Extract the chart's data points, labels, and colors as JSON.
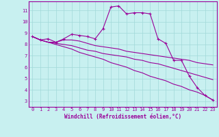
{
  "xlabel": "Windchill (Refroidissement éolien,°C)",
  "bg_color": "#c8f0f0",
  "grid_color": "#a0d8d8",
  "line_color": "#990099",
  "xlim": [
    -0.5,
    23.5
  ],
  "ylim": [
    2.5,
    11.8
  ],
  "xticks": [
    0,
    1,
    2,
    3,
    4,
    5,
    6,
    7,
    8,
    9,
    10,
    11,
    12,
    13,
    14,
    15,
    16,
    17,
    18,
    19,
    20,
    21,
    22,
    23
  ],
  "yticks": [
    3,
    4,
    5,
    6,
    7,
    8,
    9,
    10,
    11
  ],
  "lines": [
    {
      "x": [
        0,
        1,
        2,
        3,
        4,
        5,
        6,
        7,
        8,
        9,
        10,
        11,
        12,
        13,
        14,
        15,
        16,
        17,
        18,
        19,
        20,
        21,
        22,
        23
      ],
      "y": [
        8.7,
        8.4,
        8.5,
        8.2,
        8.5,
        8.9,
        8.8,
        8.7,
        8.5,
        9.4,
        11.3,
        11.4,
        10.7,
        10.8,
        10.8,
        10.7,
        8.5,
        8.1,
        6.6,
        6.6,
        5.2,
        4.2,
        3.5,
        3.1
      ],
      "has_markers": true
    },
    {
      "x": [
        0,
        1,
        2,
        3,
        4,
        5,
        6,
        7,
        8,
        9,
        10,
        11,
        12,
        13,
        14,
        15,
        16,
        17,
        18,
        19,
        20,
        21,
        22,
        23
      ],
      "y": [
        8.7,
        8.4,
        8.2,
        8.2,
        8.4,
        8.4,
        8.3,
        8.1,
        7.9,
        7.8,
        7.7,
        7.6,
        7.4,
        7.3,
        7.2,
        7.1,
        7.0,
        6.9,
        6.8,
        6.7,
        6.6,
        6.4,
        6.3,
        6.2
      ],
      "has_markers": false
    },
    {
      "x": [
        0,
        1,
        2,
        3,
        4,
        5,
        6,
        7,
        8,
        9,
        10,
        11,
        12,
        13,
        14,
        15,
        16,
        17,
        18,
        19,
        20,
        21,
        22,
        23
      ],
      "y": [
        8.7,
        8.4,
        8.2,
        8.1,
        8.0,
        7.9,
        7.7,
        7.5,
        7.4,
        7.2,
        7.1,
        7.0,
        6.9,
        6.7,
        6.6,
        6.4,
        6.3,
        6.1,
        5.9,
        5.7,
        5.5,
        5.3,
        5.1,
        4.9
      ],
      "has_markers": false
    },
    {
      "x": [
        0,
        1,
        2,
        3,
        4,
        5,
        6,
        7,
        8,
        9,
        10,
        11,
        12,
        13,
        14,
        15,
        16,
        17,
        18,
        19,
        20,
        21,
        22,
        23
      ],
      "y": [
        8.7,
        8.4,
        8.2,
        8.0,
        7.8,
        7.6,
        7.3,
        7.1,
        6.9,
        6.7,
        6.4,
        6.2,
        6.0,
        5.7,
        5.5,
        5.2,
        5.0,
        4.8,
        4.5,
        4.3,
        4.0,
        3.8,
        3.5,
        3.1
      ],
      "has_markers": false
    }
  ],
  "font_color": "#990099",
  "tick_fontsize": 5.0,
  "label_fontsize": 5.5
}
